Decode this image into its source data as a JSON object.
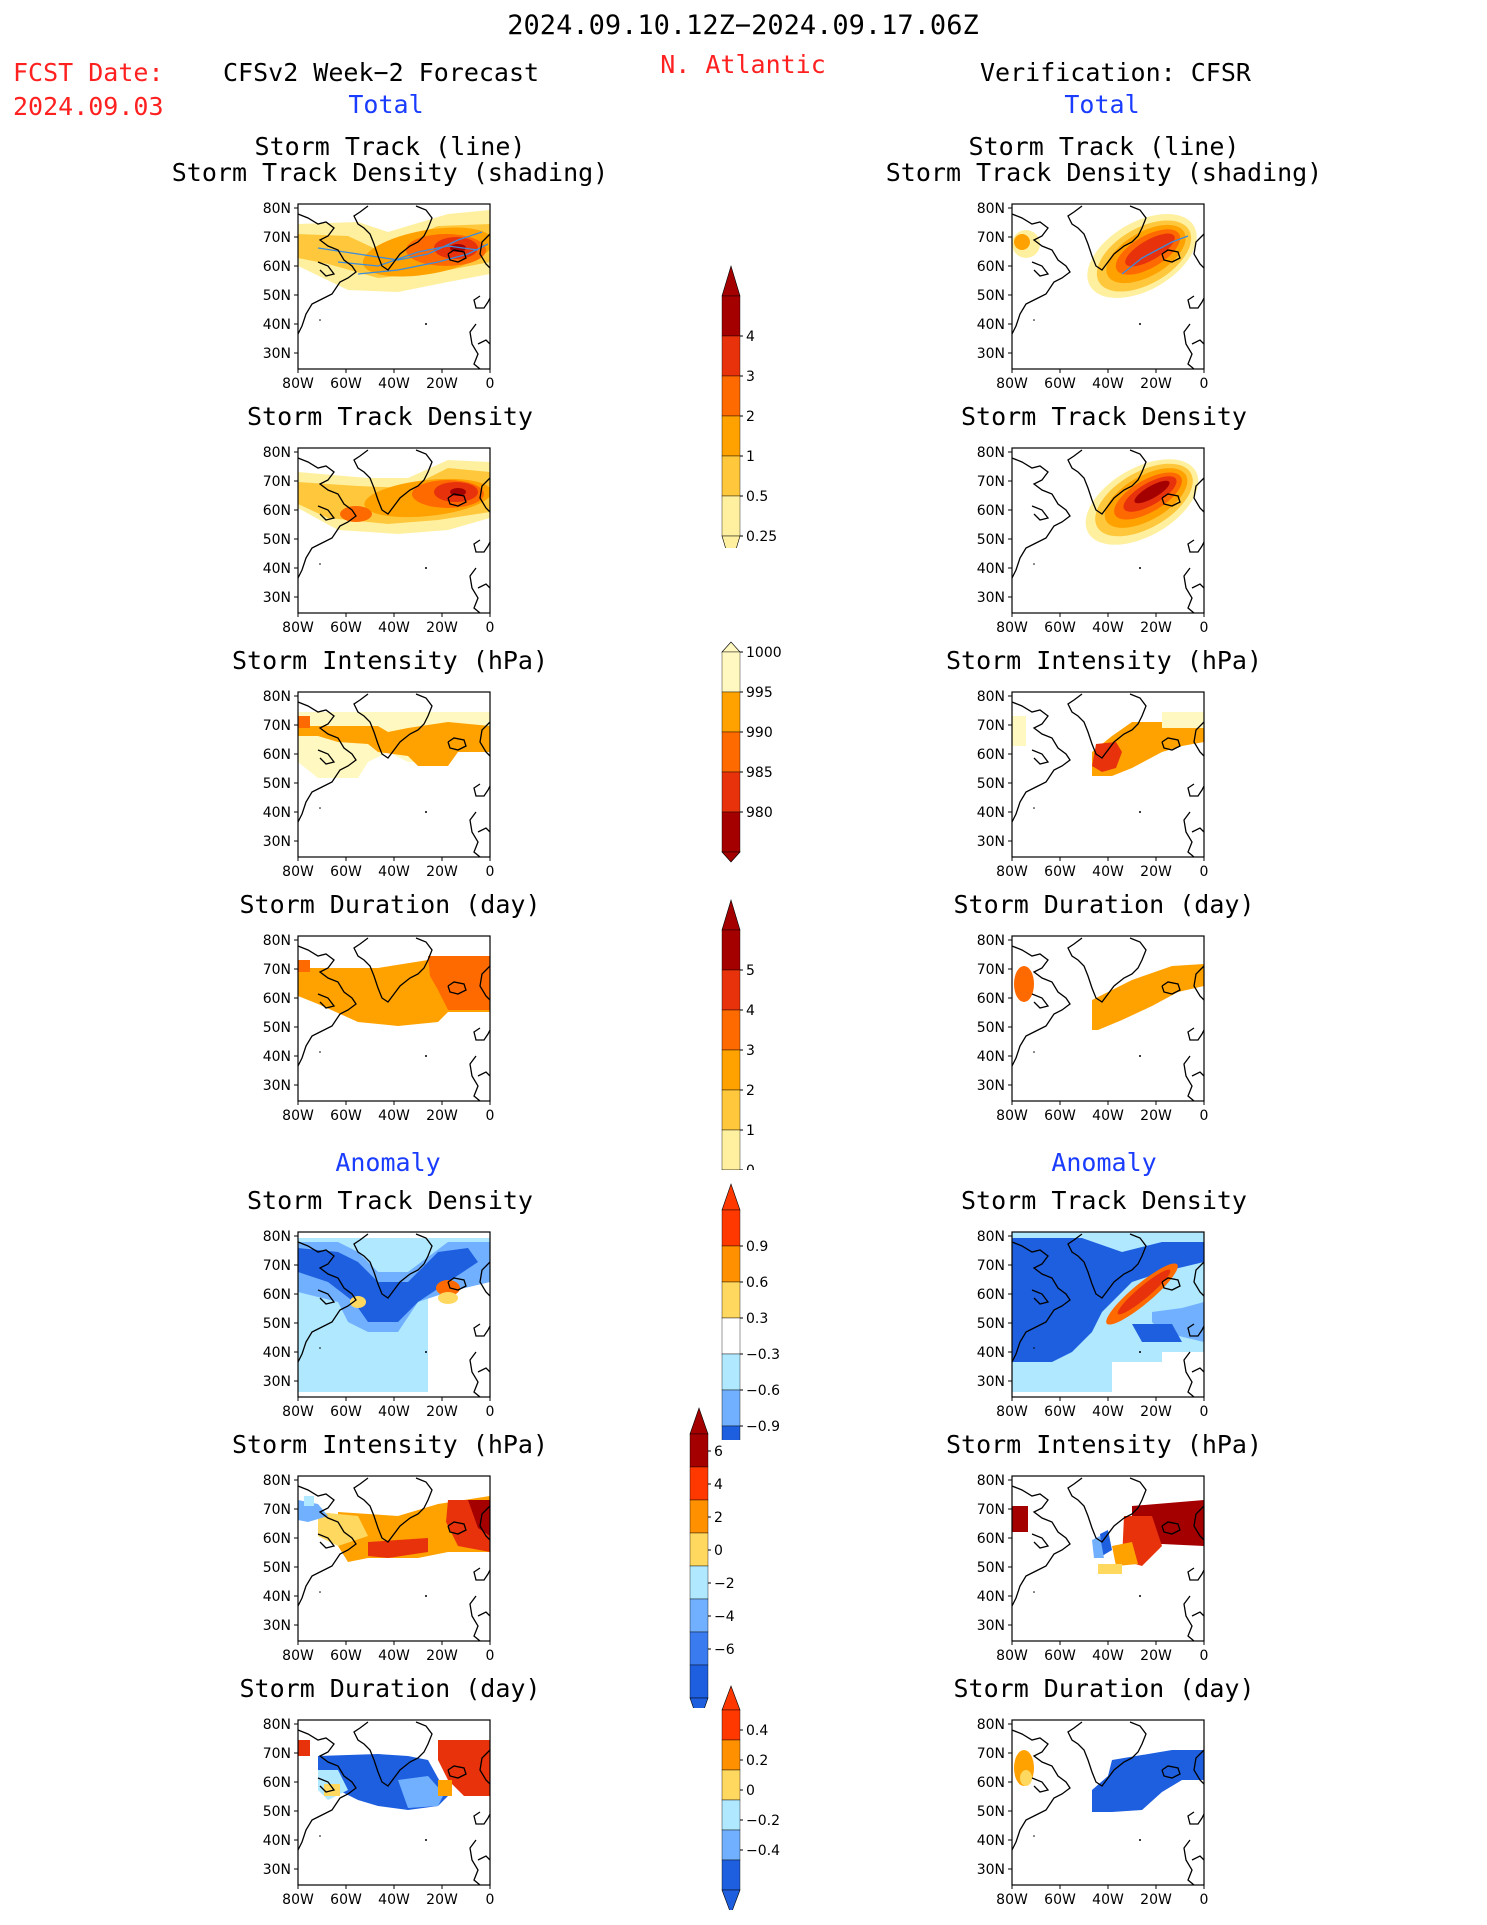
{
  "header": {
    "period": "2024.09.10.12Z−2024.09.17.06Z",
    "fcst_label": "FCST Date:",
    "fcst_date": "2024.09.03",
    "forecast_title": "CFSv2 Week−2 Forecast",
    "region": "N. Atlantic",
    "verification_title": "Verification: CFSR"
  },
  "sections": {
    "total": "Total",
    "anomaly": "Anomaly"
  },
  "panel_titles": {
    "track_line": "Storm Track (line)",
    "track_shading": "Storm Track Density (shading)",
    "density": "Storm Track Density",
    "intensity": "Storm Intensity (hPa)",
    "duration": "Storm Duration (day)"
  },
  "axes": {
    "lon_labels": [
      "80W",
      "60W",
      "40W",
      "20W",
      "0"
    ],
    "lat_labels": [
      "80N",
      "70N",
      "60N",
      "50N",
      "40N",
      "30N"
    ]
  },
  "colorbars": {
    "density_total": {
      "labels": [
        "4",
        "3",
        "2",
        "1",
        "0.5",
        "0.25"
      ],
      "colors": [
        "#a50000",
        "#e8320c",
        "#ff6a00",
        "#ffa200",
        "#ffc83c",
        "#fff0a0"
      ]
    },
    "intensity_total": {
      "labels": [
        "1000",
        "995",
        "990",
        "985",
        "980"
      ],
      "colors": [
        "#fff8c0",
        "#ffa200",
        "#ff6a00",
        "#e8320c",
        "#a50000"
      ]
    },
    "duration_total": {
      "labels": [
        "5",
        "4",
        "3",
        "2",
        "1",
        "0"
      ],
      "colors": [
        "#a50000",
        "#e8320c",
        "#ff6a00",
        "#ffa200",
        "#ffc83c",
        "#fff0a0"
      ]
    },
    "density_anom": {
      "labels": [
        "0.9",
        "0.6",
        "0.3",
        "−0.3",
        "−0.6",
        "−0.9"
      ],
      "colors": [
        "#ff3800",
        "#ff9000",
        "#ffd860",
        "#ffffff",
        "#b0e8ff",
        "#70b0ff",
        "#1e5fe0"
      ]
    },
    "intensity_anom": {
      "labels": [
        "6",
        "4",
        "2",
        "0",
        "−2",
        "−4",
        "−6"
      ],
      "colors": [
        "#a50000",
        "#ff3800",
        "#ff9000",
        "#ffd860",
        "#b0e8ff",
        "#70b0ff",
        "#3a7cf0",
        "#1e5fe0"
      ]
    },
    "duration_anom": {
      "labels": [
        "0.4",
        "0.2",
        "0",
        "−0.2",
        "−0.4"
      ],
      "colors": [
        "#ff3800",
        "#ff9000",
        "#ffd860",
        "#b0e8ff",
        "#70b0ff",
        "#1e5fe0"
      ]
    }
  },
  "colors": {
    "red_text": "#ff2020",
    "blue_text": "#1a3cff",
    "track_line": "#3c8cdc"
  }
}
